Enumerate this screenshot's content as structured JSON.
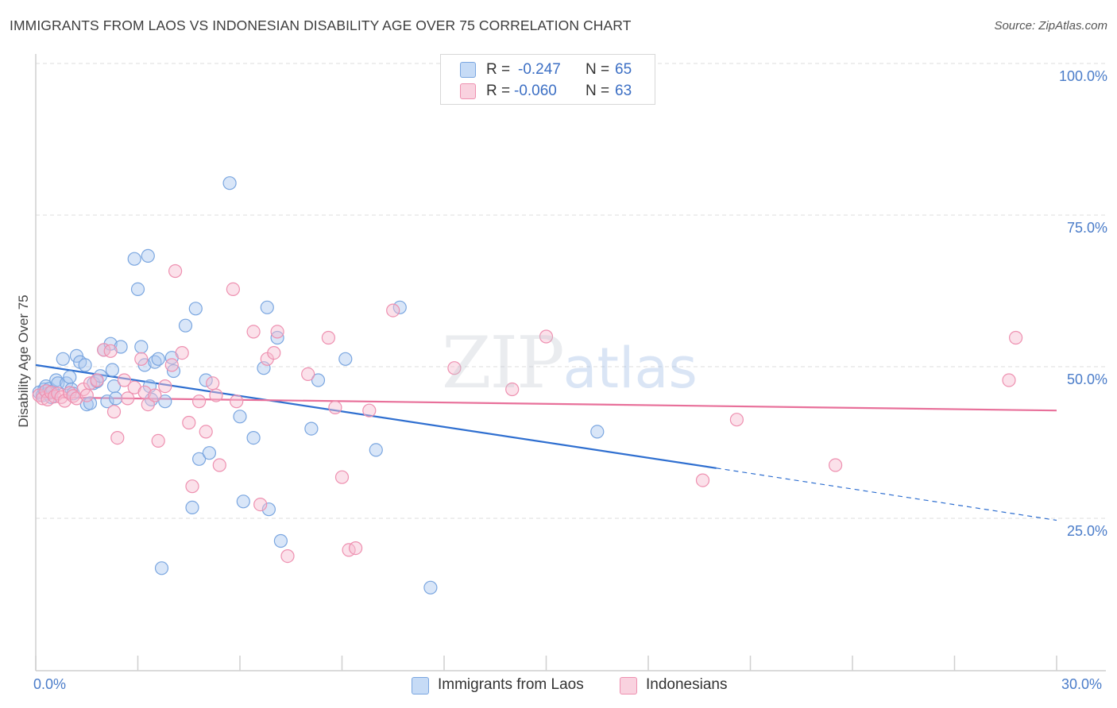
{
  "title": "IMMIGRANTS FROM LAOS VS INDONESIAN DISABILITY AGE OVER 75 CORRELATION CHART",
  "source": "Source: ZipAtlas.com",
  "watermark": {
    "zip": "ZIP",
    "atlas": "atlas"
  },
  "legend": {
    "rows": [
      {
        "r_label": "R =",
        "r_value": "-0.247",
        "n_label": "N =",
        "n_value": "65"
      },
      {
        "r_label": "R =",
        "r_value": "-0.060",
        "n_label": "N =",
        "n_value": "63"
      }
    ]
  },
  "bottom_legend": [
    "Immigrants from Laos",
    "Indonesians"
  ],
  "colors": {
    "blue_fill": "#aac8f0",
    "blue_stroke": "#7aa6e0",
    "blue_line": "#2f6fd0",
    "pink_fill": "#f6bcd0",
    "pink_stroke": "#ee90b0",
    "pink_line": "#e8709a",
    "tick_text": "#4a7cc9",
    "grid": "#dcdcdc"
  },
  "chart_data": {
    "type": "scatter",
    "title": "IMMIGRANTS FROM LAOS VS INDONESIAN DISABILITY AGE OVER 75 CORRELATION CHART",
    "xlabel": "",
    "ylabel": "Disability Age Over 75",
    "xlim": [
      0,
      30
    ],
    "ylim": [
      0,
      105
    ],
    "x_tick_labels": [
      "0.0%",
      "30.0%"
    ],
    "y_ticks": [
      {
        "value": 100,
        "label": "100.0%"
      },
      {
        "value": 75,
        "label": "75.0%"
      },
      {
        "value": 50,
        "label": "50.0%"
      },
      {
        "value": 25,
        "label": "25.0%"
      }
    ],
    "grid": true,
    "legend_position": "top-center",
    "series": [
      {
        "name": "Immigrants from Laos",
        "color": "#aac8f0",
        "points": [
          [
            0.1,
            48.0
          ],
          [
            0.2,
            47.5
          ],
          [
            0.25,
            48.5
          ],
          [
            0.3,
            49.0
          ],
          [
            0.35,
            47.8
          ],
          [
            0.4,
            48.6
          ],
          [
            0.45,
            47.2
          ],
          [
            0.5,
            48.2
          ],
          [
            0.6,
            50.0
          ],
          [
            0.65,
            49.5
          ],
          [
            0.8,
            53.5
          ],
          [
            0.9,
            49.5
          ],
          [
            1.0,
            50.5
          ],
          [
            1.05,
            48.5
          ],
          [
            1.1,
            47.8
          ],
          [
            1.2,
            54.0
          ],
          [
            1.3,
            53.0
          ],
          [
            1.45,
            52.5
          ],
          [
            1.5,
            46.0
          ],
          [
            1.6,
            46.2
          ],
          [
            1.7,
            49.5
          ],
          [
            1.8,
            49.8
          ],
          [
            1.9,
            50.7
          ],
          [
            2.0,
            55.0
          ],
          [
            2.1,
            46.5
          ],
          [
            2.2,
            56.0
          ],
          [
            2.25,
            51.7
          ],
          [
            2.3,
            49.0
          ],
          [
            2.35,
            47.0
          ],
          [
            2.5,
            55.5
          ],
          [
            2.9,
            70.0
          ],
          [
            3.0,
            65.0
          ],
          [
            3.1,
            55.5
          ],
          [
            3.2,
            52.5
          ],
          [
            3.3,
            70.5
          ],
          [
            3.35,
            49.0
          ],
          [
            3.5,
            53.0
          ],
          [
            3.6,
            53.5
          ],
          [
            3.7,
            19.0
          ],
          [
            4.0,
            53.7
          ],
          [
            4.05,
            51.5
          ],
          [
            4.4,
            59.0
          ],
          [
            4.7,
            61.8
          ],
          [
            4.8,
            37.0
          ],
          [
            5.0,
            50.0
          ],
          [
            5.1,
            38.0
          ],
          [
            5.7,
            82.5
          ],
          [
            6.0,
            44.0
          ],
          [
            6.1,
            30.0
          ],
          [
            6.4,
            40.5
          ],
          [
            6.7,
            52.0
          ],
          [
            6.8,
            62.0
          ],
          [
            6.85,
            28.7
          ],
          [
            7.1,
            57.0
          ],
          [
            7.2,
            23.5
          ],
          [
            8.1,
            42.0
          ],
          [
            8.3,
            50.0
          ],
          [
            9.1,
            53.5
          ],
          [
            10.0,
            38.5
          ],
          [
            10.7,
            62.0
          ],
          [
            11.6,
            15.8
          ],
          [
            16.5,
            41.5
          ],
          [
            4.6,
            29.0
          ],
          [
            3.8,
            46.5
          ],
          [
            3.4,
            46.8
          ]
        ]
      },
      {
        "name": "Indonesians",
        "color": "#f6bcd0",
        "points": [
          [
            0.1,
            47.5
          ],
          [
            0.2,
            47.0
          ],
          [
            0.3,
            48.2
          ],
          [
            0.35,
            46.8
          ],
          [
            0.45,
            48.0
          ],
          [
            0.55,
            47.3
          ],
          [
            0.65,
            47.8
          ],
          [
            0.75,
            47.2
          ],
          [
            0.85,
            46.6
          ],
          [
            1.0,
            47.9
          ],
          [
            1.1,
            47.4
          ],
          [
            1.2,
            47.0
          ],
          [
            1.4,
            48.5
          ],
          [
            1.5,
            47.5
          ],
          [
            1.6,
            49.5
          ],
          [
            1.8,
            50.0
          ],
          [
            2.0,
            55.0
          ],
          [
            2.2,
            54.8
          ],
          [
            2.3,
            44.8
          ],
          [
            2.4,
            40.5
          ],
          [
            2.6,
            50.0
          ],
          [
            2.7,
            47.0
          ],
          [
            2.9,
            48.8
          ],
          [
            3.1,
            53.5
          ],
          [
            3.2,
            48.0
          ],
          [
            3.3,
            46.0
          ],
          [
            3.5,
            47.5
          ],
          [
            3.6,
            40.0
          ],
          [
            3.8,
            49.0
          ],
          [
            4.0,
            52.5
          ],
          [
            4.1,
            68.0
          ],
          [
            4.3,
            54.5
          ],
          [
            4.5,
            43.0
          ],
          [
            4.6,
            32.5
          ],
          [
            4.8,
            46.5
          ],
          [
            5.0,
            41.5
          ],
          [
            5.2,
            49.5
          ],
          [
            5.3,
            47.5
          ],
          [
            5.4,
            36.0
          ],
          [
            5.8,
            65.0
          ],
          [
            5.9,
            46.5
          ],
          [
            6.4,
            58.0
          ],
          [
            6.6,
            29.5
          ],
          [
            6.8,
            53.5
          ],
          [
            7.0,
            54.5
          ],
          [
            7.1,
            58.0
          ],
          [
            7.4,
            21.0
          ],
          [
            8.0,
            51.0
          ],
          [
            8.6,
            57.0
          ],
          [
            8.8,
            45.5
          ],
          [
            9.0,
            34.0
          ],
          [
            9.2,
            22.0
          ],
          [
            9.4,
            22.3
          ],
          [
            9.8,
            45.0
          ],
          [
            10.5,
            61.5
          ],
          [
            12.3,
            52.0
          ],
          [
            14.0,
            48.5
          ],
          [
            15.0,
            57.2
          ],
          [
            19.6,
            33.5
          ],
          [
            20.6,
            43.5
          ],
          [
            23.5,
            36.0
          ],
          [
            28.6,
            50.0
          ],
          [
            28.8,
            57.0
          ]
        ]
      }
    ],
    "trend_lines": [
      {
        "series": "Immigrants from Laos",
        "solid": [
          [
            0,
            52.5
          ],
          [
            20,
            35.5
          ]
        ],
        "dashed": [
          [
            20,
            35.5
          ],
          [
            30,
            26.9
          ]
        ]
      },
      {
        "series": "Indonesians",
        "solid": [
          [
            0,
            47.2
          ],
          [
            30,
            45.0
          ]
        ]
      }
    ]
  }
}
